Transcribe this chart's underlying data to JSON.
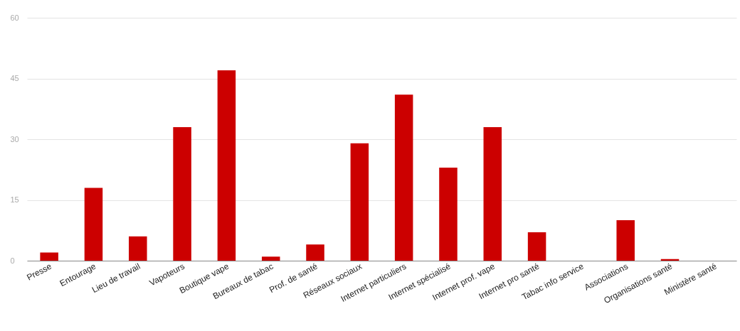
{
  "chart_data": {
    "type": "bar",
    "categories": [
      "Presse",
      "Entourage",
      "Lieu de travail",
      "Vapoteurs",
      "Boutique vape",
      "Bureaux de tabac",
      "Prof. de santé",
      "Réseaux sociaux",
      "Internet particuliers",
      "Internet spécialisé",
      "Internet prof. vape",
      "Internet pro santé",
      "Tabac info service",
      "Associations",
      "Organisations santé",
      "Ministère santé"
    ],
    "values": [
      2,
      18,
      6,
      33,
      47,
      1,
      4,
      29,
      41,
      23,
      33,
      7,
      0,
      10,
      0.4,
      0
    ],
    "color": "#cc0000",
    "ylim": [
      0,
      60
    ],
    "yticks": [
      0,
      15,
      30,
      45,
      60
    ],
    "grid": "y"
  }
}
